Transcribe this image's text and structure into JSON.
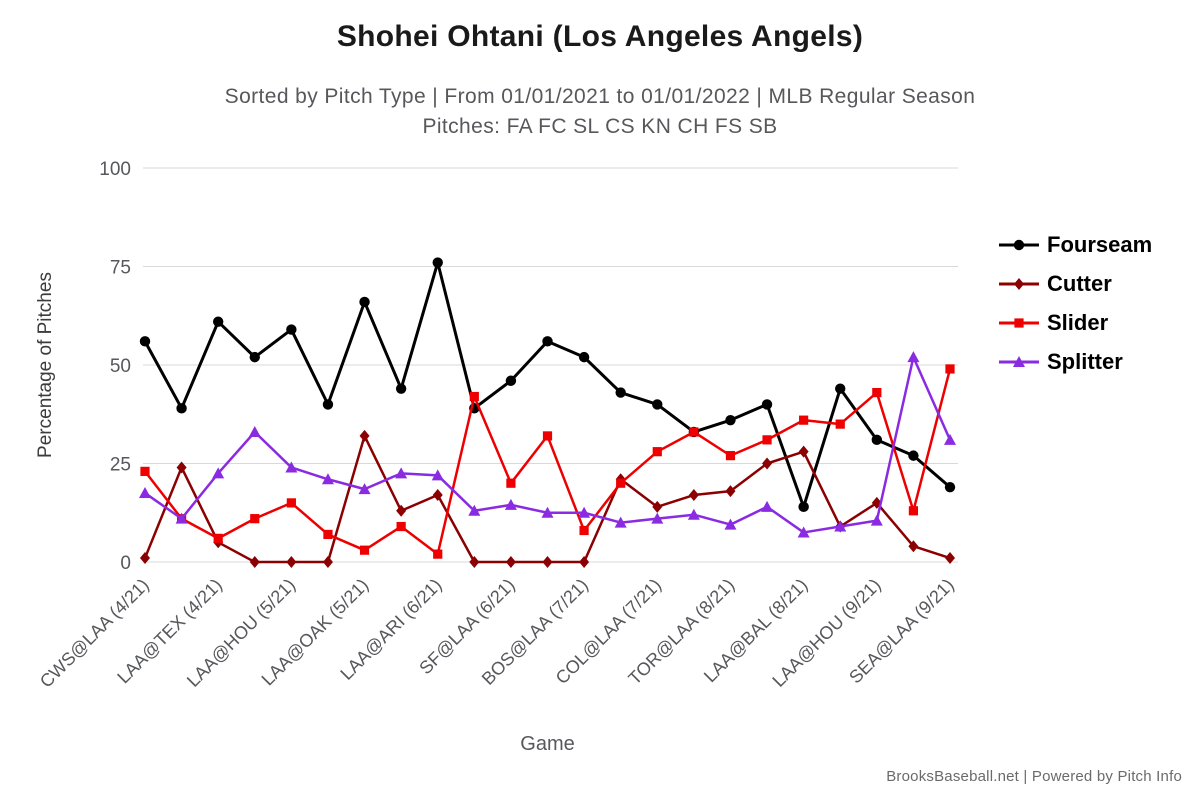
{
  "header": {
    "title": "Shohei Ohtani (Los Angeles Angels)",
    "subtitle": "Sorted by Pitch Type | From 01/01/2021 to 01/01/2022 | MLB Regular Season",
    "pitches_line": "Pitches: FA FC SL CS KN CH FS SB"
  },
  "footer": {
    "credit": "BrooksBaseball.net | Powered by Pitch Info"
  },
  "chart_data": {
    "type": "line",
    "title": "Shohei Ohtani (Los Angeles Angels)",
    "xlabel": "Game",
    "ylabel": "Percentage of Pitches",
    "ylim": [
      0,
      100
    ],
    "yticks": [
      0,
      25,
      50,
      75,
      100
    ],
    "grid": "horizontal",
    "legend_position": "right",
    "n_points": 23,
    "x_tick_every": 2,
    "x_tick_labels": [
      "CWS@LAA (4/21)",
      "LAA@TEX (4/21)",
      "LAA@HOU (5/21)",
      "LAA@OAK (5/21)",
      "LAA@ARI (6/21)",
      "SF@LAA (6/21)",
      "BOS@LAA (7/21)",
      "COL@LAA (7/21)",
      "TOR@LAA (8/21)",
      "LAA@BAL (8/21)",
      "LAA@HOU (9/21)",
      "SEA@LAA (9/21)"
    ],
    "colors": {
      "grid": "#d9d9d9",
      "axis_text": "#57585b",
      "title": "#1a1a1a",
      "subtitle": "#57585b"
    },
    "series": [
      {
        "name": "Fourseam",
        "color": "#000000",
        "marker": "circle",
        "values": [
          56,
          39,
          61,
          52,
          59,
          40,
          66,
          44,
          76,
          39,
          46,
          56,
          52,
          43,
          40,
          33,
          36,
          40,
          14,
          44,
          31,
          27,
          19
        ]
      },
      {
        "name": "Cutter",
        "color": "#8b0000",
        "marker": "diamond",
        "values": [
          1,
          24,
          5,
          0,
          0,
          0,
          32,
          13,
          17,
          0,
          0,
          0,
          0,
          21,
          14,
          17,
          18,
          25,
          28,
          9,
          15,
          4,
          1
        ]
      },
      {
        "name": "Slider",
        "color": "#ee0000",
        "marker": "square",
        "values": [
          23,
          11,
          6,
          11,
          15,
          7,
          3,
          9,
          2,
          42,
          20,
          32,
          8,
          20,
          28,
          33,
          27,
          31,
          36,
          35,
          43,
          13,
          49
        ]
      },
      {
        "name": "Splitter",
        "color": "#8a2be2",
        "marker": "triangle",
        "values": [
          17.5,
          11,
          22.5,
          33,
          24,
          21,
          18.5,
          22.5,
          22,
          13,
          14.5,
          12.5,
          12.5,
          10,
          11,
          12,
          9.5,
          14,
          7.5,
          9,
          10.5,
          52,
          31
        ]
      }
    ]
  }
}
